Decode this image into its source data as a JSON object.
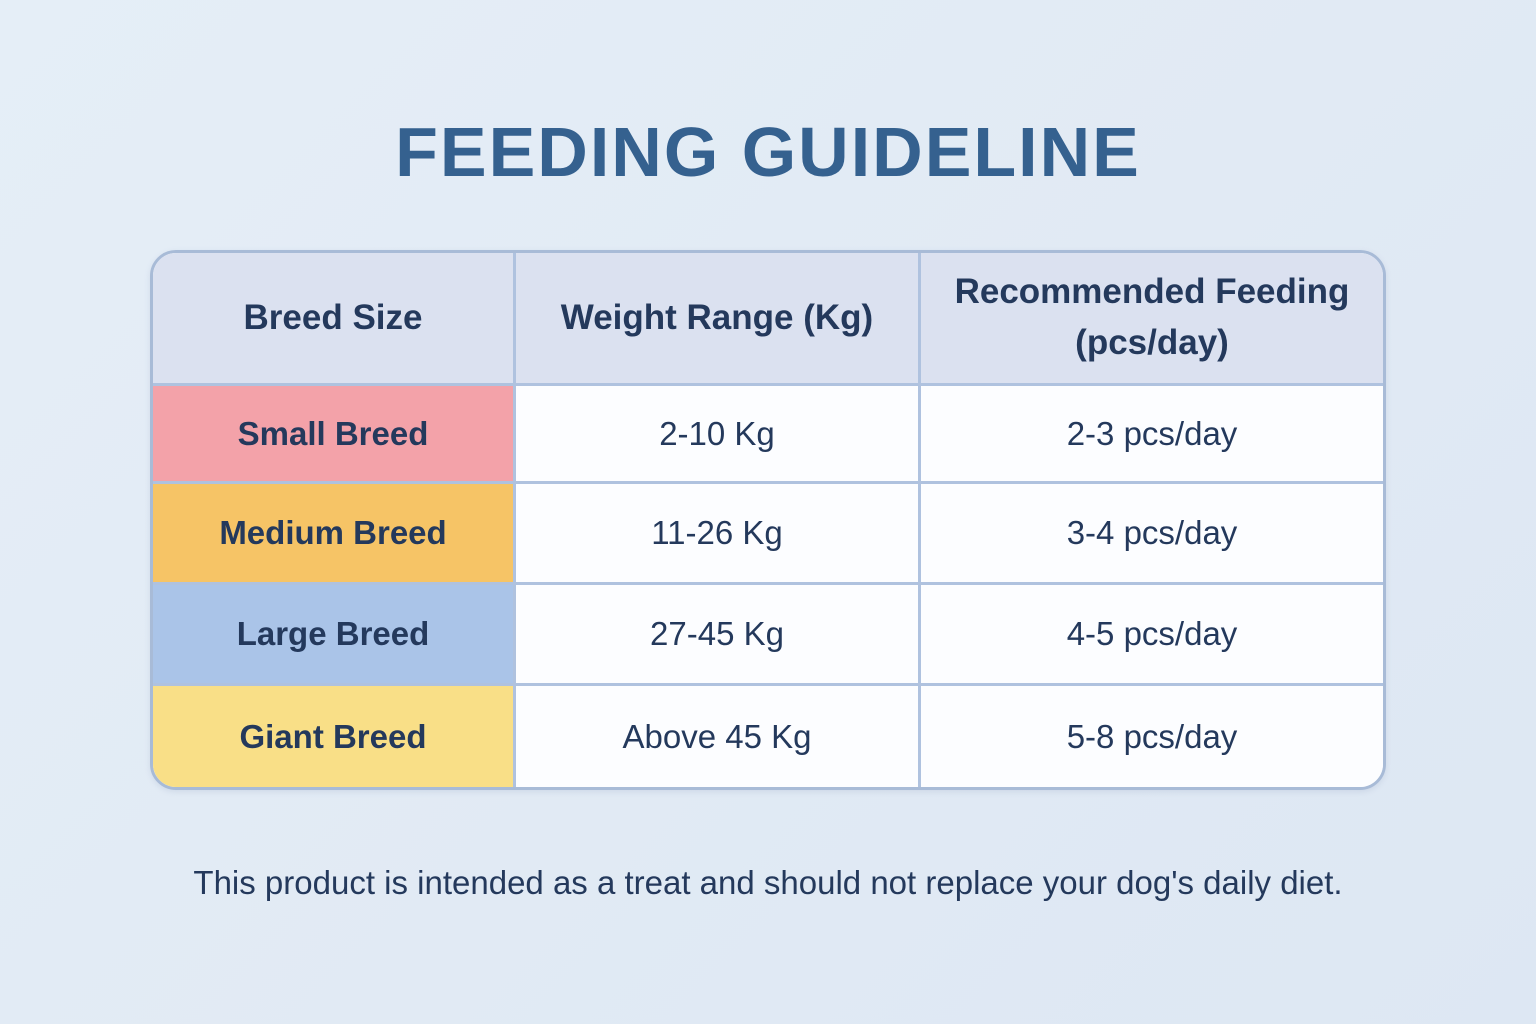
{
  "title": "FEEDING GUIDELINE",
  "table": {
    "headers": [
      "Breed Size",
      "Weight Range (Kg)",
      "Recommended Feeding (pcs/day)"
    ],
    "rows": [
      {
        "breed": "Small Breed",
        "weight": "2-10 Kg",
        "feeding": "2-3 pcs/day",
        "row_color": "#F3A2A9"
      },
      {
        "breed": "Medium Breed",
        "weight": "11-26 Kg",
        "feeding": "3-4 pcs/day",
        "row_color": "#F6C466"
      },
      {
        "breed": "Large Breed",
        "weight": "27-45 Kg",
        "feeding": "4-5 pcs/day",
        "row_color": "#AAC4E8"
      },
      {
        "breed": "Giant Breed",
        "weight": "Above 45 Kg",
        "feeding": "5-8 pcs/day",
        "row_color": "#F9DF87"
      }
    ]
  },
  "footer_note": "This product is intended as a treat and should not replace your dog's daily diet.",
  "colors": {
    "page_background": "#E1EAF4",
    "title_text": "#35618F",
    "header_background": "#DBE1F0",
    "cell_background": "#FCFDFF",
    "table_border": "#A8BBD7",
    "grid_line": "#AFC2DF",
    "body_text": "#24395C"
  }
}
